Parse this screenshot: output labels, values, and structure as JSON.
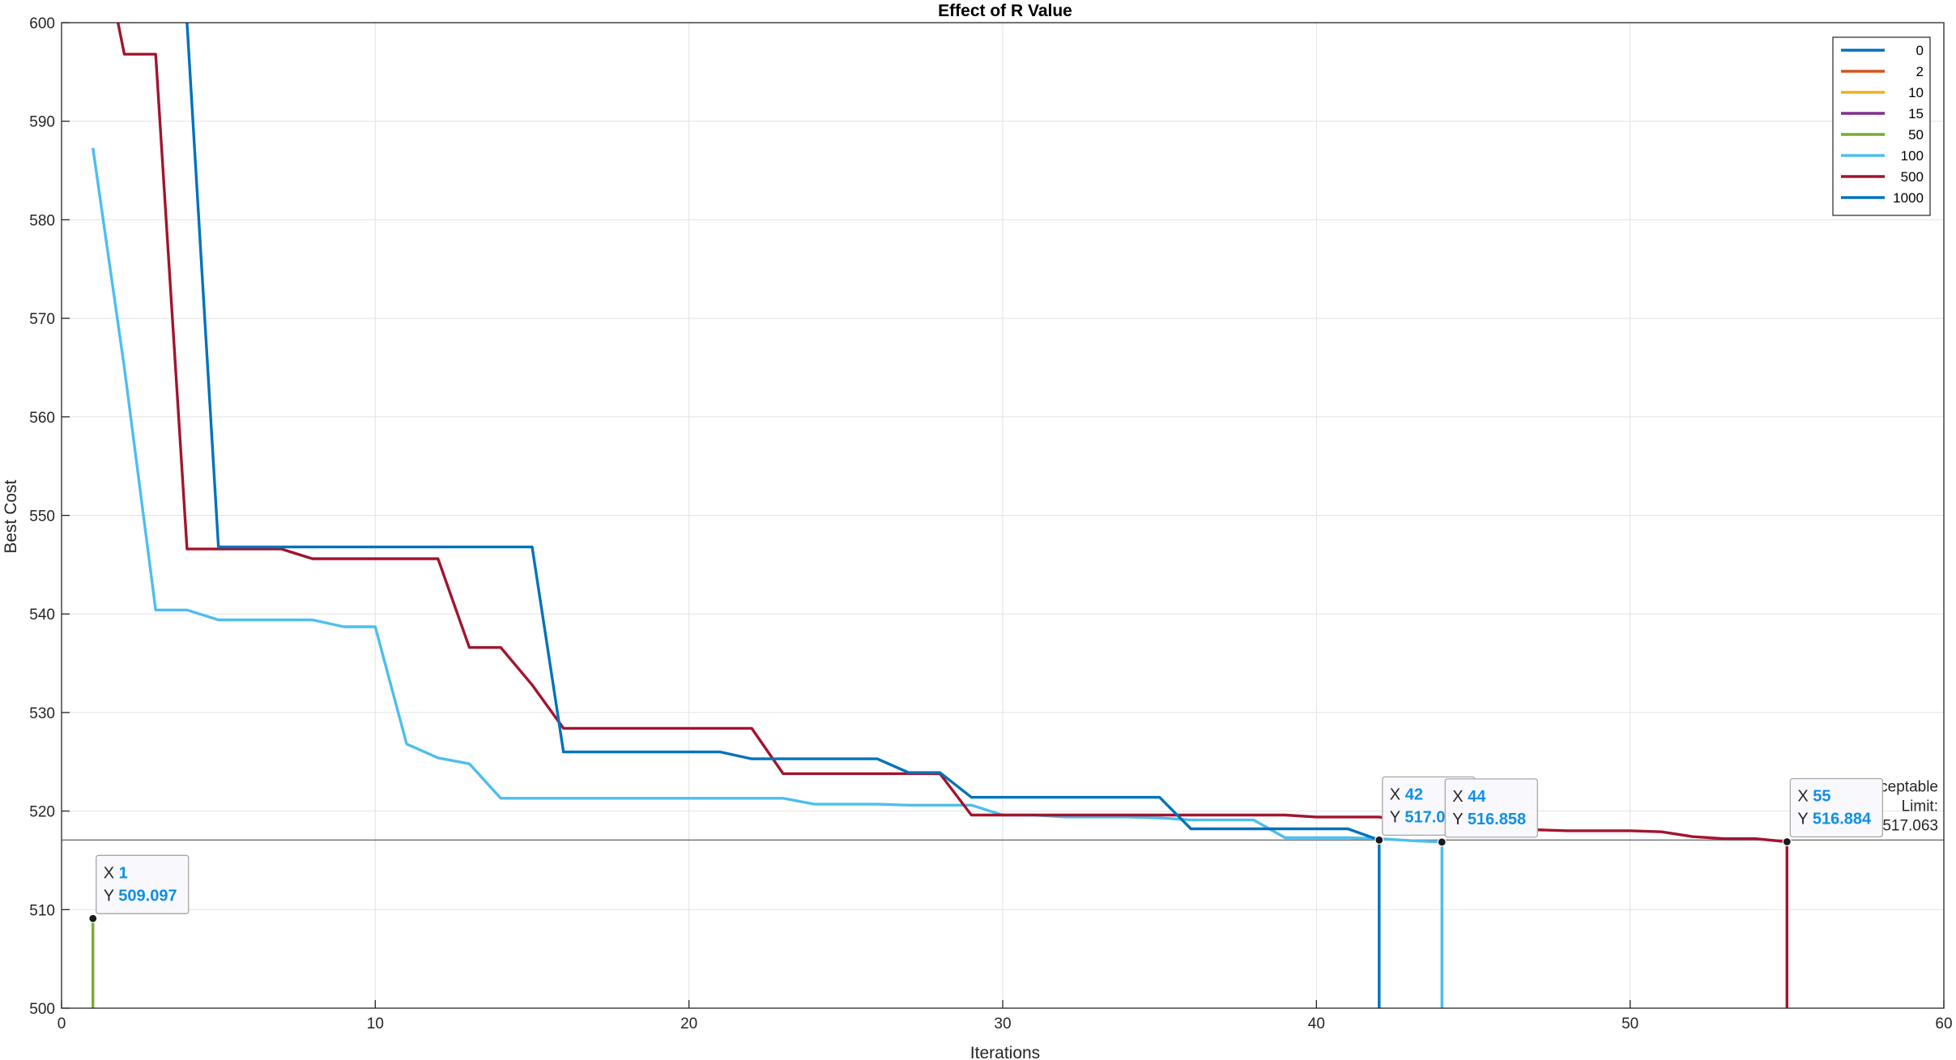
{
  "chart_data": {
    "type": "line",
    "title": "Effect of R Value",
    "xlabel": "Iterations",
    "ylabel": "Best Cost",
    "xlim": [
      0,
      60
    ],
    "ylim": [
      500,
      600
    ],
    "xticks": [
      0,
      10,
      20,
      30,
      40,
      50,
      60
    ],
    "yticks": [
      500,
      510,
      520,
      530,
      540,
      550,
      560,
      570,
      580,
      590,
      600
    ],
    "grid": true,
    "legend_position": "top-right",
    "series": [
      {
        "name": "0",
        "color": "#0072BD",
        "x": [],
        "y": []
      },
      {
        "name": "2",
        "color": "#D95319",
        "x": [],
        "y": []
      },
      {
        "name": "10",
        "color": "#EDB120",
        "x": [],
        "y": []
      },
      {
        "name": "15",
        "color": "#7E2F8E",
        "x": [],
        "y": []
      },
      {
        "name": "50",
        "color": "#77AC30",
        "x": [
          1,
          1
        ],
        "y": [
          509.097,
          500
        ]
      },
      {
        "name": "100",
        "color": "#4DBEEE",
        "x": [
          1,
          2,
          3,
          4,
          5,
          6,
          7,
          8,
          9,
          10,
          11,
          12,
          13,
          14,
          15,
          16,
          17,
          18,
          19,
          20,
          21,
          22,
          23,
          24,
          25,
          26,
          27,
          28,
          29,
          30,
          31,
          32,
          33,
          34,
          35,
          36,
          37,
          38,
          39,
          40,
          41,
          42,
          43,
          44,
          44
        ],
        "y": [
          587.3,
          565.0,
          540.4,
          540.4,
          539.4,
          539.4,
          539.4,
          539.4,
          538.7,
          538.7,
          526.8,
          525.4,
          524.8,
          521.3,
          521.3,
          521.3,
          521.3,
          521.3,
          521.3,
          521.3,
          521.3,
          521.3,
          521.3,
          520.7,
          520.7,
          520.7,
          520.6,
          520.6,
          520.6,
          519.6,
          519.6,
          519.4,
          519.4,
          519.4,
          519.3,
          519.1,
          519.1,
          519.1,
          517.3,
          517.3,
          517.3,
          517.2,
          517.0,
          516.858,
          500
        ]
      },
      {
        "name": "500",
        "color": "#A2142F",
        "x": [
          1.8,
          2,
          3,
          4,
          5,
          6,
          7,
          8,
          9,
          10,
          11,
          12,
          13,
          14,
          15,
          16,
          17,
          18,
          19,
          20,
          21,
          22,
          23,
          24,
          25,
          26,
          27,
          28,
          29,
          30,
          31,
          32,
          33,
          34,
          35,
          36,
          37,
          38,
          39,
          40,
          41,
          42,
          43,
          44,
          45,
          46,
          47,
          48,
          49,
          50,
          51,
          52,
          53,
          54,
          55,
          55
        ],
        "y": [
          600,
          596.8,
          596.8,
          546.6,
          546.6,
          546.6,
          546.6,
          545.6,
          545.6,
          545.6,
          545.6,
          545.6,
          536.6,
          536.6,
          532.8,
          528.4,
          528.4,
          528.4,
          528.4,
          528.4,
          528.4,
          528.4,
          523.8,
          523.8,
          523.8,
          523.8,
          523.8,
          523.8,
          519.6,
          519.6,
          519.6,
          519.6,
          519.6,
          519.6,
          519.6,
          519.6,
          519.6,
          519.6,
          519.6,
          519.4,
          519.4,
          519.4,
          518.9,
          518.5,
          518.3,
          518.2,
          518.1,
          518.0,
          518.0,
          518.0,
          517.9,
          517.4,
          517.2,
          517.2,
          516.884,
          500
        ]
      },
      {
        "name": "1000",
        "color": "#0072BD",
        "x": [
          4,
          5,
          6,
          7,
          8,
          9,
          10,
          11,
          12,
          13,
          14,
          15,
          16,
          17,
          18,
          19,
          20,
          21,
          22,
          23,
          24,
          25,
          26,
          27,
          28,
          29,
          30,
          31,
          32,
          33,
          34,
          35,
          36,
          37,
          38,
          39,
          40,
          41,
          42,
          42
        ],
        "y": [
          600,
          546.8,
          546.8,
          546.8,
          546.8,
          546.8,
          546.8,
          546.8,
          546.8,
          546.8,
          546.8,
          546.8,
          526.0,
          526.0,
          526.0,
          526.0,
          526.0,
          526.0,
          525.3,
          525.3,
          525.3,
          525.3,
          525.3,
          523.9,
          523.9,
          521.4,
          521.4,
          521.4,
          521.4,
          521.4,
          521.4,
          521.4,
          518.2,
          518.2,
          518.2,
          518.2,
          518.2,
          518.2,
          517.063,
          500
        ]
      }
    ],
    "reference_line": {
      "y": 517.063,
      "color": "#777777",
      "label_lines": [
        "Acceptable",
        "Limit:",
        "517.063"
      ]
    },
    "datatips": [
      {
        "x": 1,
        "y": 509.097,
        "x_text": "1",
        "y_text": "509.097"
      },
      {
        "x": 42,
        "y": 517.063,
        "x_text": "42",
        "y_text": "517.063"
      },
      {
        "x": 44,
        "y": 516.858,
        "x_text": "44",
        "y_text": "516.858"
      },
      {
        "x": 55,
        "y": 516.884,
        "x_text": "55",
        "y_text": "516.884"
      }
    ]
  },
  "labels": {
    "x_prefix": "X",
    "y_prefix": "Y"
  }
}
